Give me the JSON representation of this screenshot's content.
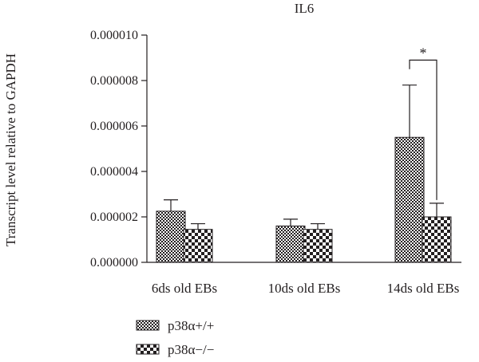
{
  "chart_data": {
    "type": "bar",
    "title": "IL6",
    "xlabel": "",
    "ylabel": "Transcript level relative to GAPDH",
    "ylim": [
      0,
      1e-05
    ],
    "yticks": [
      "0.000000",
      "0.000002",
      "0.000004",
      "0.000006",
      "0.000008",
      "0.000010"
    ],
    "categories": [
      "6ds old EBs",
      "10ds old EBs",
      "14ds old EBs"
    ],
    "series": [
      {
        "name": "p38α+/+",
        "pattern": "fine-checker",
        "values": [
          2.25e-06,
          1.6e-06,
          5.5e-06
        ],
        "errors": [
          5e-07,
          3e-07,
          2.3e-06
        ]
      },
      {
        "name": "p38α−/−",
        "pattern": "coarse-checker",
        "values": [
          1.45e-06,
          1.45e-06,
          2e-06
        ],
        "errors": [
          2.5e-07,
          2.5e-07,
          6e-07
        ]
      }
    ],
    "annotations": [
      {
        "text": "*",
        "category": "14ds old EBs",
        "between": [
          "p38α+/+",
          "p38α−/−"
        ],
        "level": 8.9e-06
      }
    ],
    "legend_position": "bottom-left",
    "colors": {
      "ink": "#231f20",
      "fill_dark": "#231f20",
      "fill_light": "#ffffff"
    }
  }
}
